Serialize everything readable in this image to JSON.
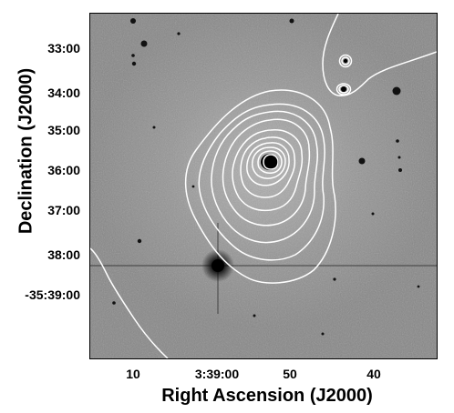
{
  "figure": {
    "x_axis_title": "Right Ascension (J2000)",
    "y_axis_title": "Declination (J2000)",
    "x_ticks": [
      "10",
      "3:39:00",
      "50",
      "40"
    ],
    "y_ticks": [
      "33:00",
      "34:00",
      "35:00",
      "36:00",
      "37:00",
      "38:00",
      "-35:39:00"
    ],
    "contour_color": "#ffffff",
    "sky_color": "#8f8f8f"
  }
}
